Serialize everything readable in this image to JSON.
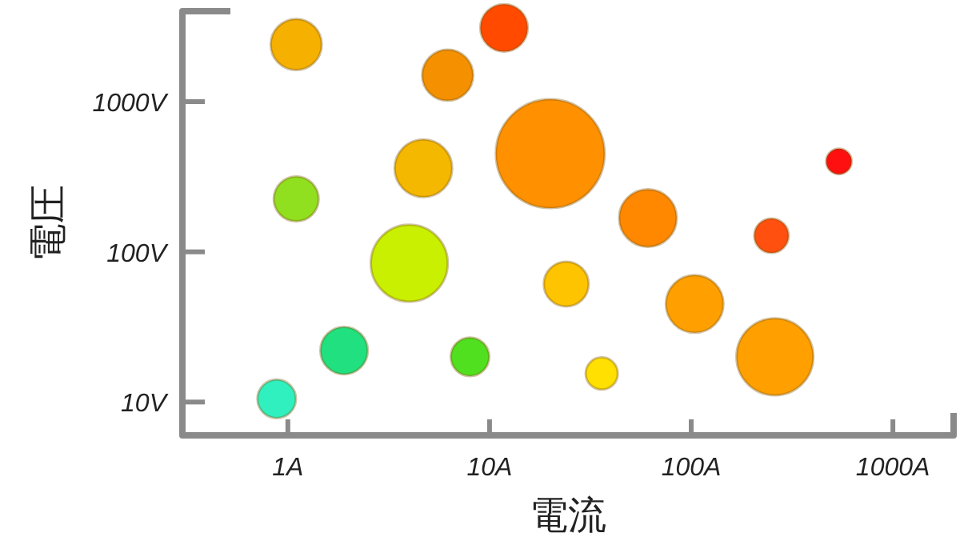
{
  "chart_data": {
    "type": "bubble",
    "xlabel": "電流",
    "ylabel": "電圧",
    "log": "xy",
    "xlim": [
      0.3,
      2000
    ],
    "ylim": [
      6,
      4000
    ],
    "xticks": [
      {
        "value": 1,
        "label": "1A"
      },
      {
        "value": 10,
        "label": "10A"
      },
      {
        "value": 100,
        "label": "100A"
      },
      {
        "value": 1000,
        "label": "1000A"
      }
    ],
    "yticks": [
      {
        "value": 10,
        "label": "10V"
      },
      {
        "value": 100,
        "label": "100V"
      },
      {
        "value": 1000,
        "label": "1000V"
      }
    ],
    "x": [
      1.1,
      11.8,
      6.2,
      20,
      4.7,
      1.1,
      61,
      540,
      250,
      4.0,
      24,
      104,
      260,
      36,
      8,
      1.9,
      0.88
    ],
    "values": [
      2400,
      3100,
      1500,
      450,
      360,
      225,
      168,
      400,
      128,
      84,
      61,
      45,
      20,
      15.5,
      20,
      22,
      10.5
    ],
    "sizes": [
      0.22,
      0.19,
      0.22,
      1,
      0.28,
      0.17,
      0.28,
      0.055,
      0.1,
      0.5,
      0.17,
      0.28,
      0.5,
      0.087,
      0.125,
      0.19,
      0.125
    ],
    "colors": [
      "#f5b000",
      "#ff4a00",
      "#f59000",
      "#ff9000",
      "#f5b800",
      "#90e020",
      "#ff8800",
      "#ff1010",
      "#ff5010",
      "#c8f000",
      "#ffc400",
      "#ffa000",
      "#ffa000",
      "#ffe000",
      "#50e020",
      "#20e080",
      "#30f0c0"
    ]
  }
}
